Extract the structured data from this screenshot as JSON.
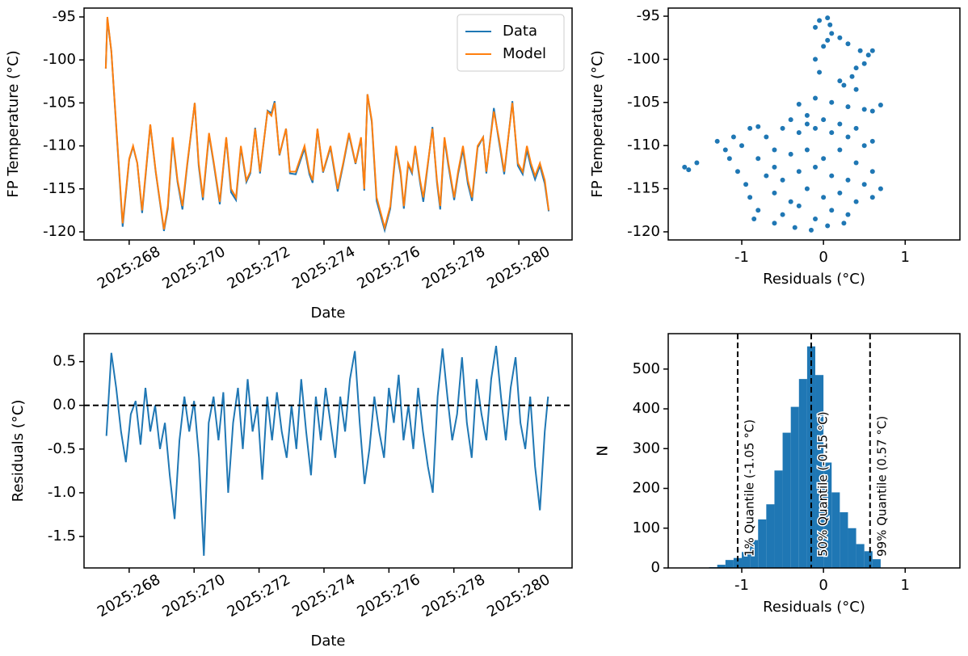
{
  "chart_data": [
    {
      "type": "line",
      "xlabel": "Date",
      "ylabel": "FP Temperature (°C)",
      "legend": "upper right",
      "xtick_rotation": 30,
      "xlim": [
        266.61,
        281.64
      ],
      "ylim": [
        -120.94,
        -93.97
      ],
      "xticks": [
        {
          "value": 268,
          "label": "2025:268"
        },
        {
          "value": 270,
          "label": "2025:270"
        },
        {
          "value": 272,
          "label": "2025:272"
        },
        {
          "value": 274,
          "label": "2025:274"
        },
        {
          "value": 276,
          "label": "2025:276"
        },
        {
          "value": 278,
          "label": "2025:278"
        },
        {
          "value": 280,
          "label": "2025:280"
        }
      ],
      "yticks": [
        -95,
        -100,
        -105,
        -110,
        -115,
        -120
      ],
      "x": [
        267.28,
        267.33,
        267.45,
        267.8,
        268.0,
        268.12,
        268.25,
        268.4,
        268.65,
        268.82,
        269.07,
        269.19,
        269.34,
        269.49,
        269.64,
        269.79,
        270.02,
        270.14,
        270.27,
        270.46,
        270.61,
        270.79,
        270.99,
        271.14,
        271.29,
        271.44,
        271.61,
        271.73,
        271.88,
        272.03,
        272.26,
        272.38,
        272.48,
        272.63,
        272.83,
        272.95,
        273.13,
        273.4,
        273.55,
        273.65,
        273.8,
        273.97,
        274.2,
        274.42,
        274.59,
        274.77,
        274.97,
        275.14,
        275.24,
        275.34,
        275.47,
        275.62,
        275.87,
        276.04,
        276.22,
        276.36,
        276.46,
        276.59,
        276.71,
        276.81,
        276.96,
        277.06,
        277.34,
        277.48,
        277.58,
        277.71,
        277.83,
        278.01,
        278.13,
        278.28,
        278.43,
        278.56,
        278.73,
        278.9,
        279.0,
        279.23,
        279.38,
        279.55,
        279.8,
        279.97,
        280.12,
        280.25,
        280.37,
        280.5,
        280.65,
        280.8,
        280.92
      ],
      "series": [
        {
          "name": "Data",
          "color": "#1f77b4",
          "values": [
            -101,
            -95.2,
            -99,
            -119.4,
            -111.6,
            -110.1,
            -112,
            -117.8,
            -107.6,
            -113.1,
            -119.9,
            -117.3,
            -109.3,
            -114.2,
            -117.4,
            -112.2,
            -105,
            -112.3,
            -116.3,
            -108.7,
            -112.2,
            -116.8,
            -109.1,
            -115.4,
            -116.3,
            -110.2,
            -114.2,
            -113.2,
            -107.9,
            -113.2,
            -105.9,
            -106.2,
            -104.8,
            -111.1,
            -108,
            -113.2,
            -113.3,
            -110.3,
            -113.3,
            -114.3,
            -108.1,
            -113.1,
            -110.2,
            -115.3,
            -112.2,
            -108.7,
            -112.1,
            -109.2,
            -115.2,
            -104,
            -107.2,
            -116.4,
            -119.8,
            -117.3,
            -110.3,
            -113.3,
            -117.3,
            -112.2,
            -113.2,
            -110.2,
            -114.3,
            -116.5,
            -107.8,
            -114.3,
            -117.4,
            -109.2,
            -112.3,
            -116.3,
            -113.3,
            -110.4,
            -114.4,
            -116.4,
            -110.2,
            -109,
            -113.2,
            -105.6,
            -109.3,
            -113.3,
            -104.8,
            -112.3,
            -113.3,
            -110.5,
            -112.4,
            -113.9,
            -112.3,
            -114.4,
            -117.6
          ]
        },
        {
          "name": "Model",
          "color": "#ff7f0e",
          "values": [
            -101,
            -95,
            -99,
            -119,
            -111.5,
            -110,
            -112,
            -117.5,
            -107.5,
            -113,
            -119.7,
            -117,
            -109,
            -114,
            -117,
            -112,
            -105,
            -112,
            -116,
            -108.5,
            -112,
            -116.5,
            -109,
            -115,
            -116,
            -110,
            -114,
            -113,
            -108,
            -113,
            -106,
            -106.5,
            -105,
            -111,
            -108,
            -113,
            -113,
            -110,
            -113,
            -114,
            -108,
            -113,
            -110,
            -115,
            -112,
            -108.5,
            -112,
            -109,
            -115,
            -104,
            -107,
            -116,
            -119.5,
            -117,
            -110,
            -113,
            -117,
            -112,
            -113,
            -110,
            -114,
            -116,
            -108,
            -114,
            -117,
            -109,
            -112,
            -116,
            -113,
            -110,
            -114,
            -116,
            -110,
            -109,
            -113,
            -106,
            -109,
            -113,
            -105,
            -112,
            -113,
            -110,
            -112,
            -113.5,
            -112,
            -114,
            -117.5
          ]
        }
      ]
    },
    {
      "type": "scatter",
      "xlabel": "Residuals (°C)",
      "ylabel": "FP Temperature (°C)",
      "color": "#1f77b4",
      "xlim": [
        -1.9,
        1.67
      ],
      "ylim": [
        -120.94,
        -94.06
      ],
      "xticks": [
        -1,
        0,
        1
      ],
      "yticks": [
        -95,
        -100,
        -105,
        -110,
        -115,
        -120
      ],
      "x": [
        -0.05,
        0.05,
        0.08,
        -0.1,
        0.1,
        0.05,
        0.0,
        0.2,
        0.3,
        0.45,
        0.55,
        0.6,
        0.5,
        0.4,
        0.35,
        0.25,
        0.2,
        0.4,
        -0.05,
        -0.1,
        -0.3,
        -0.1,
        0.1,
        0.3,
        0.5,
        0.7,
        0.6,
        -0.2,
        -1.7,
        -1.65,
        -1.55,
        -1.3,
        -1.1,
        -1.2,
        -1.15,
        -1.05,
        -0.9,
        -0.8,
        -0.95,
        -1.0,
        -0.7,
        -0.6,
        -0.5,
        -0.4,
        -0.3,
        -0.2,
        -0.1,
        0.0,
        0.1,
        0.2,
        0.3,
        0.4,
        0.5,
        0.6,
        -0.8,
        -0.6,
        -0.4,
        -0.2,
        0.0,
        0.2,
        0.4,
        0.6,
        -0.7,
        -0.5,
        -0.3,
        -0.1,
        0.1,
        0.3,
        0.5,
        0.7,
        -0.9,
        -0.6,
        -0.4,
        -0.2,
        0.0,
        0.2,
        0.4,
        0.6,
        -0.8,
        -0.5,
        -0.3,
        -0.1,
        0.1,
        0.3,
        -0.6,
        -0.35,
        -0.15,
        0.05,
        0.25,
        -0.85
      ],
      "values": [
        -95.5,
        -95.2,
        -96.0,
        -96.3,
        -97.0,
        -97.8,
        -98.5,
        -97.5,
        -98.2,
        -99.0,
        -99.5,
        -99.0,
        -100.5,
        -101.0,
        -102.0,
        -103.0,
        -102.5,
        -103.5,
        -101.5,
        -100.0,
        -105.2,
        -104.5,
        -105.0,
        -105.5,
        -105.8,
        -105.3,
        -106.0,
        -106.5,
        -112.5,
        -112.8,
        -112.0,
        -109.5,
        -109.0,
        -110.5,
        -111.5,
        -113.0,
        -108.0,
        -107.8,
        -114.5,
        -110.0,
        -109.0,
        -110.5,
        -108.0,
        -107.0,
        -108.5,
        -107.5,
        -108.0,
        -107.0,
        -108.5,
        -107.5,
        -109.0,
        -108.0,
        -110.0,
        -109.5,
        -111.5,
        -112.5,
        -111.0,
        -110.5,
        -111.5,
        -110.5,
        -112.0,
        -113.0,
        -113.5,
        -114.0,
        -113.0,
        -112.5,
        -113.5,
        -114.0,
        -114.5,
        -115.0,
        -116.0,
        -115.5,
        -116.5,
        -115.0,
        -116.0,
        -115.5,
        -116.5,
        -116.0,
        -117.5,
        -118.0,
        -117.0,
        -118.5,
        -117.5,
        -118.0,
        -119.0,
        -119.5,
        -119.8,
        -119.3,
        -119.0,
        -118.5
      ]
    },
    {
      "type": "line",
      "xlabel": "Date",
      "ylabel": "Residuals (°C)",
      "xtick_rotation": 30,
      "hline": 0,
      "xlim": [
        266.61,
        281.64
      ],
      "ylim": [
        -1.86,
        0.82
      ],
      "xticks": [
        {
          "value": 268,
          "label": "2025:268"
        },
        {
          "value": 270,
          "label": "2025:270"
        },
        {
          "value": 272,
          "label": "2025:272"
        },
        {
          "value": 274,
          "label": "2025:274"
        },
        {
          "value": 276,
          "label": "2025:276"
        },
        {
          "value": 278,
          "label": "2025:278"
        },
        {
          "value": 280,
          "label": "2025:280"
        }
      ],
      "yticks": [
        0.5,
        {
          "value": 0,
          "label": "0.0"
        },
        -0.5,
        {
          "value": -1,
          "label": "-1.0"
        },
        -1.5
      ],
      "x": [
        267.3,
        267.45,
        267.6,
        267.75,
        267.9,
        268.05,
        268.2,
        268.35,
        268.5,
        268.65,
        268.8,
        268.95,
        269.1,
        269.25,
        269.4,
        269.55,
        269.7,
        269.85,
        270.0,
        270.15,
        270.3,
        270.45,
        270.6,
        270.75,
        270.9,
        271.05,
        271.2,
        271.35,
        271.5,
        271.65,
        271.8,
        271.95,
        272.1,
        272.25,
        272.4,
        272.55,
        272.7,
        272.85,
        273.0,
        273.15,
        273.3,
        273.45,
        273.6,
        273.75,
        273.9,
        274.05,
        274.2,
        274.35,
        274.5,
        274.65,
        274.8,
        274.95,
        275.1,
        275.25,
        275.4,
        275.55,
        275.7,
        275.85,
        276.0,
        276.15,
        276.3,
        276.45,
        276.6,
        276.75,
        276.9,
        277.05,
        277.2,
        277.35,
        277.5,
        277.65,
        277.8,
        277.95,
        278.1,
        278.25,
        278.4,
        278.55,
        278.7,
        278.85,
        279.0,
        279.15,
        279.3,
        279.45,
        279.6,
        279.75,
        279.9,
        280.05,
        280.2,
        280.35,
        280.5,
        280.65,
        280.8,
        280.9
      ],
      "series": [
        {
          "color": "#1f77b4",
          "values": [
            -0.35,
            0.6,
            0.2,
            -0.3,
            -0.65,
            -0.1,
            0.05,
            -0.45,
            0.2,
            -0.3,
            0.0,
            -0.5,
            -0.2,
            -0.8,
            -1.3,
            -0.4,
            0.1,
            -0.3,
            0.05,
            -0.6,
            -1.72,
            -0.2,
            0.1,
            -0.4,
            0.15,
            -1.0,
            -0.2,
            0.2,
            -0.5,
            0.3,
            -0.3,
            0.0,
            -0.85,
            0.1,
            -0.4,
            0.15,
            -0.3,
            -0.6,
            0.0,
            -0.5,
            0.3,
            -0.3,
            -0.8,
            0.1,
            -0.4,
            0.2,
            -0.2,
            -0.6,
            0.1,
            -0.3,
            0.3,
            0.62,
            -0.2,
            -0.9,
            -0.5,
            0.1,
            -0.3,
            -0.6,
            0.2,
            -0.2,
            0.35,
            -0.4,
            0.0,
            -0.5,
            0.2,
            -0.3,
            -0.7,
            -1.0,
            0.1,
            0.65,
            0.1,
            -0.4,
            -0.1,
            0.55,
            -0.2,
            -0.6,
            0.3,
            -0.1,
            -0.4,
            0.3,
            0.68,
            0.1,
            -0.4,
            0.2,
            0.55,
            -0.2,
            -0.5,
            0.1,
            -0.7,
            -1.2,
            -0.3,
            0.1
          ]
        }
      ]
    },
    {
      "type": "histogram",
      "xlabel": "Residuals (°C)",
      "ylabel": "N",
      "color": "#1f77b4",
      "xlim": [
        -1.9,
        1.67
      ],
      "ylim": [
        0,
        589
      ],
      "xticks": [
        -1,
        0,
        1
      ],
      "yticks": [
        0,
        100,
        200,
        300,
        400,
        500
      ],
      "bins": [
        -1.7,
        -1.6,
        -1.5,
        -1.4,
        -1.3,
        -1.2,
        -1.1,
        -1.0,
        -0.9,
        -0.8,
        -0.7,
        -0.6,
        -0.5,
        -0.4,
        -0.3,
        -0.2,
        -0.1,
        0.0,
        0.1,
        0.2,
        0.3,
        0.4,
        0.5,
        0.6,
        0.7
      ],
      "values": [
        1,
        0,
        1,
        2,
        8,
        20,
        25,
        40,
        70,
        122,
        160,
        245,
        340,
        405,
        475,
        557,
        485,
        265,
        190,
        140,
        100,
        60,
        42,
        22
      ],
      "vlines": [
        {
          "value": -1.05,
          "label": "1% Quantile (-1.05 °C)"
        },
        {
          "value": -0.15,
          "label": "50% Quantile (-0.15 °C)"
        },
        {
          "value": 0.57,
          "label": "99% Quantile (0.57 °C)"
        }
      ]
    }
  ]
}
